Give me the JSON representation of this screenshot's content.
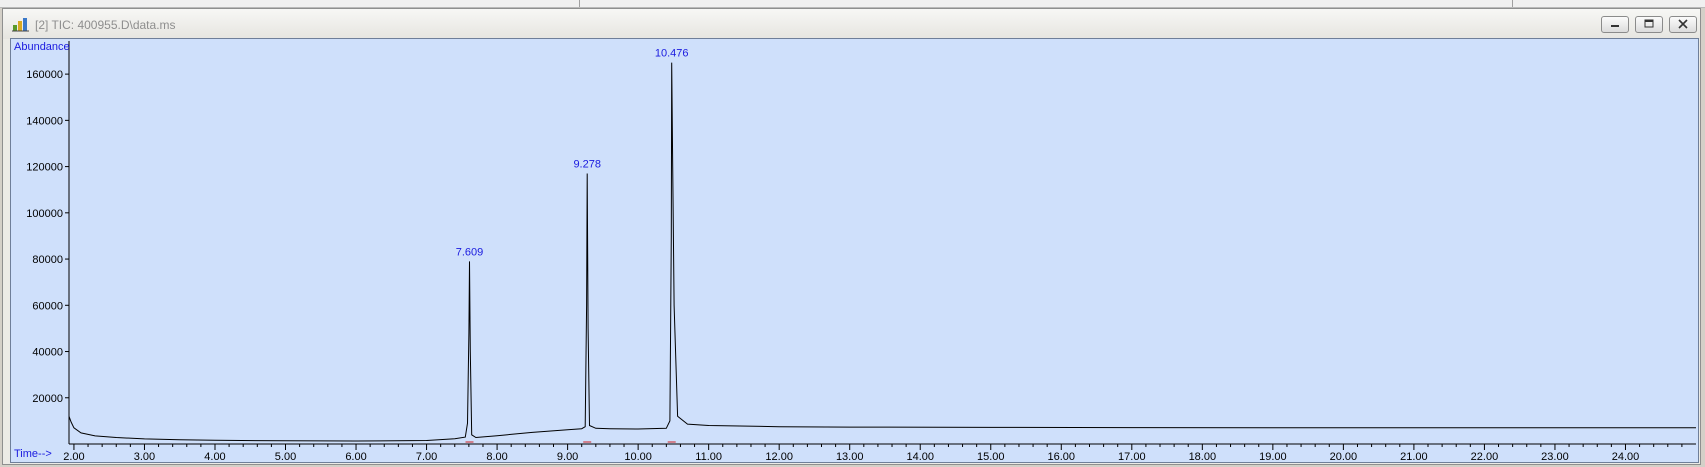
{
  "window": {
    "title": "[2] TIC: 400955.D\\data.ms",
    "icons": {
      "app": "chemstation-icon",
      "minimize": "minimize-icon",
      "maximize": "maximize-icon",
      "close": "close-icon"
    }
  },
  "chart_data": {
    "type": "line",
    "ylabel": "Abundance",
    "xlabel": "Time-->",
    "xlim": [
      1.93,
      25.0
    ],
    "ylim": [
      0,
      170000
    ],
    "x_ticks": [
      "2.00",
      "3.00",
      "4.00",
      "5.00",
      "6.00",
      "7.00",
      "8.00",
      "9.00",
      "10.00",
      "11.00",
      "12.00",
      "13.00",
      "14.00",
      "15.00",
      "16.00",
      "17.00",
      "18.00",
      "19.00",
      "20.00",
      "21.00",
      "22.00",
      "23.00",
      "24.00"
    ],
    "y_ticks": [
      "20000",
      "40000",
      "60000",
      "80000",
      "100000",
      "120000",
      "140000",
      "160000"
    ],
    "peaks": [
      {
        "label": "7.609",
        "x": 7.609,
        "y": 79000
      },
      {
        "label": "9.278",
        "x": 9.278,
        "y": 117000
      },
      {
        "label": "10.476",
        "x": 10.476,
        "y": 165000
      }
    ],
    "series": [
      {
        "x": [
          1.93,
          1.96,
          2.0,
          2.1,
          2.3,
          2.6,
          3.0,
          3.5,
          4.0,
          5.0,
          6.0,
          7.0,
          7.4,
          7.55,
          7.58,
          7.6,
          7.609,
          7.62,
          7.64,
          7.7,
          8.0,
          8.5,
          9.0,
          9.2,
          9.25,
          9.27,
          9.278,
          9.29,
          9.31,
          9.4,
          9.6,
          10.0,
          10.4,
          10.45,
          10.47,
          10.476,
          10.49,
          10.51,
          10.56,
          10.7,
          11.0,
          12.0,
          13.0,
          15.0,
          17.0,
          19.0,
          21.0,
          23.0,
          25.0
        ],
        "y": [
          12000,
          9500,
          7000,
          4800,
          3500,
          2800,
          2200,
          1800,
          1600,
          1400,
          1300,
          1500,
          2300,
          3000,
          9000,
          48000,
          79000,
          40000,
          4000,
          2800,
          3600,
          5000,
          6200,
          6600,
          7500,
          60000,
          117000,
          50000,
          8000,
          6800,
          6600,
          6500,
          6800,
          10000,
          90000,
          165000,
          120000,
          60000,
          12000,
          8600,
          8000,
          7500,
          7300,
          7200,
          7100,
          7000,
          7000,
          7000,
          7000
        ]
      }
    ]
  }
}
